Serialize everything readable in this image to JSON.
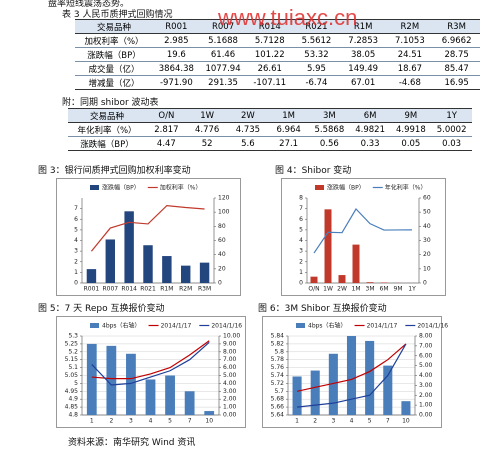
{
  "intro": "盘率短线震荡态势。",
  "watermark": "www.tuiaxc.cn",
  "table1": {
    "title": "表 3 人民币质押式回购情况",
    "header": [
      "交易品种",
      "R001",
      "R007",
      "R014",
      "R021",
      "R1M",
      "R2M",
      "R3M"
    ],
    "rows": [
      [
        "加权利率（%）",
        "2.985",
        "5.1688",
        "5.7128",
        "5.5612",
        "7.2853",
        "7.1053",
        "6.9662"
      ],
      [
        "涨跌幅（BP）",
        "19.6",
        "61.46",
        "101.22",
        "53.32",
        "38.05",
        "24.51",
        "28.75"
      ],
      [
        "成交量（亿）",
        "3864.38",
        "1077.94",
        "26.61",
        "5.95",
        "149.49",
        "18.67",
        "85.47"
      ],
      [
        "增减量（亿）",
        "-971.90",
        "291.35",
        "-107.11",
        "-6.74",
        "67.01",
        "-4.68",
        "16.95"
      ]
    ]
  },
  "table2": {
    "title": "附：同期 shibor 波动表",
    "header": [
      "交易品种",
      "O/N",
      "1W",
      "2W",
      "1M",
      "3M",
      "6M",
      "9M",
      "1Y"
    ],
    "rows": [
      [
        "年化利率（%）",
        "2.817",
        "4.776",
        "4.735",
        "6.964",
        "5.5868",
        "4.9821",
        "4.9918",
        "5.0002"
      ],
      [
        "涨跌幅（BP）",
        "4.47",
        "52",
        "5.6",
        "27.1",
        "0.56",
        "0.33",
        "0.05",
        "0.03"
      ]
    ]
  },
  "chart_data": [
    {
      "type": "combo",
      "title": "图 3：银行间质押式回购加权利率变动",
      "categories": [
        "R001",
        "R007",
        "R014",
        "R021",
        "R1M",
        "R2M",
        "R3M"
      ],
      "series": [
        {
          "name": "涨跌幅（BP）",
          "kind": "bar",
          "axis": "y2",
          "color": "#24467f",
          "values": [
            19.6,
            61.46,
            101.22,
            53.32,
            38.05,
            24.51,
            28.75
          ]
        },
        {
          "name": "加权利率（%）",
          "kind": "line",
          "color": "#c0392b",
          "values": [
            2.985,
            5.1688,
            5.7128,
            5.5612,
            7.2853,
            7.1053,
            6.9662
          ]
        }
      ],
      "ylim": [
        0,
        8
      ],
      "yticks": [
        0,
        1,
        2,
        3,
        4,
        5,
        6,
        7
      ],
      "y2lim": [
        0,
        120
      ],
      "y2ticks": [
        0,
        20,
        40,
        60,
        80,
        100,
        120
      ],
      "grid": false
    },
    {
      "type": "combo",
      "title": "图 4：Shibor 变动",
      "categories": [
        "O/N",
        "1W",
        "2W",
        "1M",
        "3M",
        "6M",
        "9M",
        "1Y"
      ],
      "series": [
        {
          "name": "涨跌幅（BP）",
          "kind": "bar",
          "axis": "y2",
          "color": "#c0392b",
          "values": [
            4.47,
            52,
            5.6,
            27.1,
            0.56,
            0.33,
            0.05,
            0.03
          ]
        },
        {
          "name": "年化利率（%）",
          "kind": "line",
          "color": "#4a7ebb",
          "values": [
            2.817,
            4.776,
            4.735,
            6.964,
            5.5868,
            4.9821,
            4.9918,
            5.0002
          ]
        }
      ],
      "ylim": [
        0,
        8
      ],
      "yticks": [
        0,
        1,
        2,
        3,
        4,
        5,
        6,
        7,
        8
      ],
      "y2lim": [
        0,
        60
      ],
      "y2ticks": [
        0,
        10,
        20,
        30,
        40,
        50,
        60
      ],
      "grid": false
    },
    {
      "type": "combo",
      "title": "图 5：7 天 Repo 互换报价变动",
      "categories": [
        "1",
        "2",
        "3",
        "4",
        "5",
        "7",
        "10"
      ],
      "series": [
        {
          "name": "4bps（右轴）",
          "kind": "bar",
          "axis": "y2",
          "color": "#4a7ebb",
          "values": [
            9.0,
            8.75,
            7.75,
            4.5,
            5.0,
            3.0,
            0.5
          ]
        },
        {
          "name": "2014/1/17",
          "kind": "line",
          "color": "#c00000",
          "values": [
            5.04,
            5.03,
            5.03,
            5.06,
            5.1,
            5.18,
            5.27
          ]
        },
        {
          "name": "2014/1/16",
          "kind": "line",
          "color": "#1f3f99",
          "values": [
            5.12,
            4.99,
            5.0,
            5.04,
            5.08,
            5.15,
            5.26
          ]
        }
      ],
      "ylim": [
        4.8,
        5.3
      ],
      "yticks": [
        4.8,
        4.85,
        4.9,
        4.95,
        5,
        5.05,
        5.1,
        5.15,
        5.2,
        5.25,
        5.3
      ],
      "y2lim": [
        0,
        10
      ],
      "y2ticks": [
        {
          "value": 0,
          "label": "0.00"
        },
        {
          "value": 1,
          "label": "1.00"
        },
        {
          "value": 2,
          "label": "2.00"
        },
        {
          "value": 3,
          "label": "3.00"
        },
        {
          "value": 4,
          "label": "4.00"
        },
        {
          "value": 5,
          "label": "5.00"
        },
        {
          "value": 6,
          "label": "6.00"
        },
        {
          "value": 7,
          "label": "7.00"
        },
        {
          "value": 8,
          "label": "8.00"
        },
        {
          "value": 9,
          "label": "9.00"
        },
        {
          "value": 10,
          "label": "10.00"
        }
      ],
      "grid": true
    },
    {
      "type": "combo",
      "title": "图 6：3M Shibor 互换报价变动",
      "categories": [
        "1",
        "2",
        "3",
        "4",
        "5",
        "7",
        "10"
      ],
      "series": [
        {
          "name": "4bps（右轴）",
          "kind": "bar",
          "axis": "y2",
          "color": "#4a7ebb",
          "values": [
            3.9,
            4.5,
            6.2,
            8.0,
            7.5,
            5.0,
            1.4
          ]
        },
        {
          "name": "2014/1/17",
          "kind": "line",
          "color": "#c00000",
          "values": [
            5.7,
            5.71,
            5.72,
            5.73,
            5.75,
            5.78,
            5.82
          ]
        },
        {
          "name": "2014/1/16",
          "kind": "line",
          "color": "#1f3f99",
          "values": [
            5.66,
            5.665,
            5.67,
            5.68,
            5.69,
            5.74,
            5.82
          ]
        }
      ],
      "ylim": [
        5.64,
        5.84
      ],
      "yticks": [
        5.64,
        5.66,
        5.68,
        5.7,
        5.72,
        5.74,
        5.76,
        5.78,
        5.8,
        5.82,
        5.84
      ],
      "y2lim": [
        0,
        8
      ],
      "y2ticks": [
        {
          "value": 0,
          "label": "0.00"
        },
        {
          "value": 1,
          "label": "1.00"
        },
        {
          "value": 2,
          "label": "2.00"
        },
        {
          "value": 3,
          "label": "3.00"
        },
        {
          "value": 4,
          "label": "4.00"
        },
        {
          "value": 5,
          "label": "5.00"
        },
        {
          "value": 6,
          "label": "6.00"
        },
        {
          "value": 7,
          "label": "7.00"
        },
        {
          "value": 8,
          "label": "8.00"
        }
      ],
      "grid": true
    }
  ],
  "source": "资料来源：南华研究  Wind 资讯"
}
